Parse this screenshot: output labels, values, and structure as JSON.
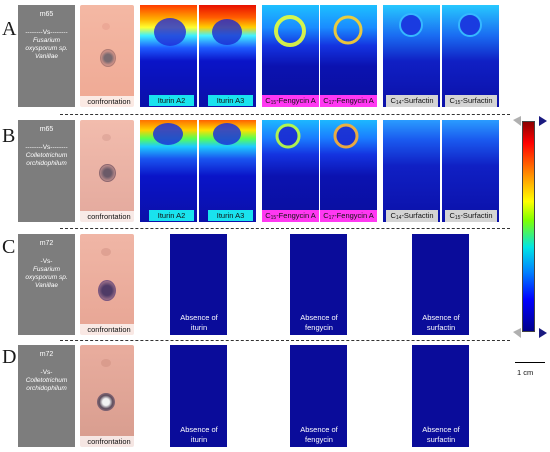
{
  "rows": [
    {
      "letter": "A",
      "sample": "m65",
      "vs": "--------Vs--------",
      "organism_line1": "Fusarium",
      "organism_line2": "oxysporum sp.",
      "organism_line3": "Vanillae",
      "photo_label": "confrontation",
      "images": [
        {
          "label": "Iturin A2",
          "style": "cyan"
        },
        {
          "label": "Iturin A3",
          "style": "cyan"
        },
        {
          "label_prefix": "C",
          "label_sub": "15",
          "label_suffix": "-Fengycin A",
          "style": "magenta"
        },
        {
          "label_prefix": "C",
          "label_sub": "17",
          "label_suffix": "-Fengycin A",
          "style": "magenta"
        },
        {
          "label_prefix": "C",
          "label_sub": "14",
          "label_suffix": "-Surfactin",
          "style": "grey"
        },
        {
          "label_prefix": "C",
          "label_sub": "15",
          "label_suffix": "-Surfactin",
          "style": "grey"
        }
      ]
    },
    {
      "letter": "B",
      "sample": "m65",
      "vs": "--------Vs--------",
      "organism_line1": "Colletotrichum",
      "organism_line2": "orchidophilum",
      "organism_line3": "",
      "photo_label": "confrontation",
      "images": [
        {
          "label": "Iturin A2",
          "style": "cyan"
        },
        {
          "label": "Iturin A3",
          "style": "cyan"
        },
        {
          "label_prefix": "C",
          "label_sub": "15",
          "label_suffix": "-Fengycin A",
          "style": "magenta"
        },
        {
          "label_prefix": "C",
          "label_sub": "17",
          "label_suffix": "-Fengycin A",
          "style": "magenta"
        },
        {
          "label_prefix": "C",
          "label_sub": "14",
          "label_suffix": "-Surfactin",
          "style": "grey"
        },
        {
          "label_prefix": "C",
          "label_sub": "15",
          "label_suffix": "-Surfactin",
          "style": "grey"
        }
      ]
    },
    {
      "letter": "C",
      "sample": "m72",
      "vs": "-Vs-",
      "organism_line1": "Fusarium",
      "organism_line2": "oxysporum sp.",
      "organism_line3": "Vanillae",
      "photo_label": "confrontation",
      "absence": [
        {
          "line1": "Absence of",
          "line2": "iturin"
        },
        {
          "line1": "Absence of",
          "line2": "fengycin"
        },
        {
          "line1": "Absence of",
          "line2": "surfactin"
        }
      ]
    },
    {
      "letter": "D",
      "sample": "m72",
      "vs": "-Vs-",
      "organism_line1": "Colletotrichum",
      "organism_line2": "orchidophilum",
      "organism_line3": "",
      "photo_label": "confrontation",
      "absence": [
        {
          "line1": "Absence of",
          "line2": "iturin"
        },
        {
          "line1": "Absence of",
          "line2": "fengycin"
        },
        {
          "line1": "Absence of",
          "line2": "surfactin"
        }
      ]
    }
  ],
  "scale_bar_label": "1 cm",
  "colors": {
    "sample_box": "#7d7d7d",
    "blank_image": "#0a0c9a",
    "label_cyan": "#19e3ee",
    "label_magenta": "#ff38f2",
    "label_grey": "#d4d4d4"
  }
}
